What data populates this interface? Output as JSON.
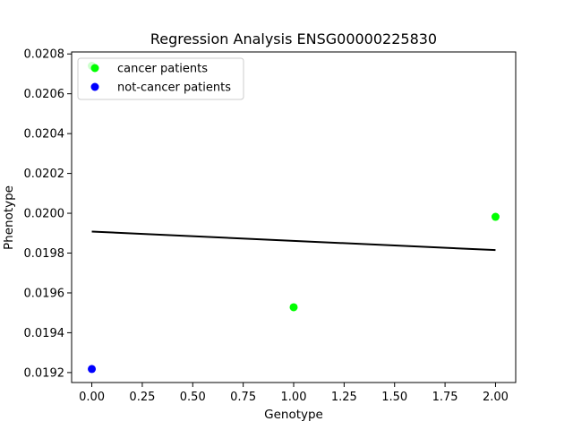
{
  "chart_data": {
    "type": "scatter",
    "title": "Regression Analysis ENSG00000225830",
    "xlabel": "Genotype",
    "ylabel": "Phenotype",
    "xlim": [
      -0.1,
      2.1
    ],
    "ylim": [
      0.01915,
      0.02081
    ],
    "x_ticks": [
      "0.00",
      "0.25",
      "0.50",
      "0.75",
      "1.00",
      "1.25",
      "1.50",
      "1.75",
      "2.00"
    ],
    "y_ticks": [
      "0.0192",
      "0.0194",
      "0.0196",
      "0.0198",
      "0.0200",
      "0.0202",
      "0.0204",
      "0.0206",
      "0.0208"
    ],
    "grid": false,
    "legend_position": "top-left",
    "series": [
      {
        "name": "cancer patients",
        "color": "#00ff00",
        "points": [
          {
            "x": 0.0,
            "y": 0.02074
          },
          {
            "x": 1.0,
            "y": 0.019528
          },
          {
            "x": 2.0,
            "y": 0.019982
          }
        ]
      },
      {
        "name": "not-cancer patients",
        "color": "#0000ff",
        "points": [
          {
            "x": 0.0,
            "y": 0.019218
          }
        ]
      }
    ],
    "regression_line": {
      "color": "#000000",
      "points": [
        {
          "x": 0.0,
          "y": 0.019908
        },
        {
          "x": 2.0,
          "y": 0.019815
        }
      ]
    }
  }
}
